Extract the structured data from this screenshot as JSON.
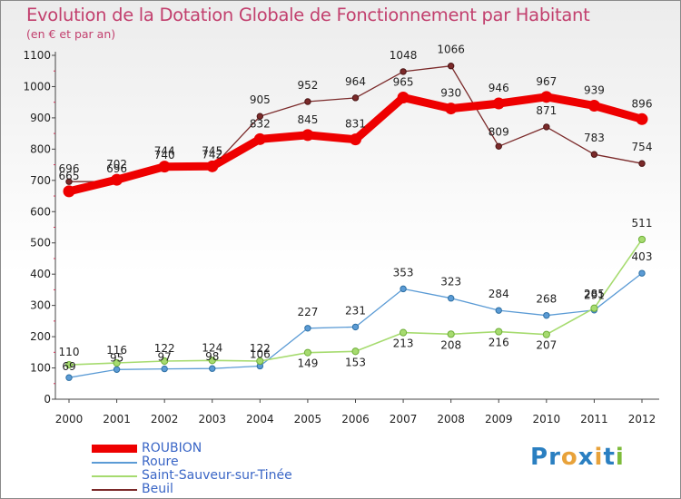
{
  "chart_data": {
    "type": "line",
    "title": "Evolution de la Dotation Globale de Fonctionnement par Habitant",
    "subtitle": "(en € et par an)",
    "x": [
      "2000",
      "2001",
      "2002",
      "2003",
      "2004",
      "2005",
      "2006",
      "2007",
      "2008",
      "2009",
      "2010",
      "2011",
      "2012"
    ],
    "ylim": [
      0,
      1100
    ],
    "yticks": [
      0,
      100,
      200,
      300,
      400,
      500,
      600,
      700,
      800,
      900,
      1000,
      1100
    ],
    "grid": false,
    "legend_position": "bottom-left",
    "series": [
      {
        "name": "ROUBION",
        "color": "#ee0000",
        "values": [
          665,
          702,
          744,
          745,
          832,
          845,
          831,
          965,
          930,
          946,
          967,
          939,
          896
        ],
        "labels": [
          "665",
          "702",
          "744",
          "745",
          "832",
          "845",
          "831",
          "965",
          "930",
          "946",
          "967",
          "939",
          "896"
        ]
      },
      {
        "name": "Roure",
        "color": "#5b9bd5",
        "values": [
          69,
          95,
          97,
          98,
          106,
          227,
          231,
          353,
          323,
          284,
          268,
          285,
          403
        ],
        "labels": [
          "69",
          "95",
          "97",
          "98",
          "106",
          "227",
          "231",
          "353",
          "323",
          "284",
          "268",
          "285",
          "403"
        ]
      },
      {
        "name": "Saint-Sauveur-sur-Tinée",
        "color": "#a6db6f",
        "values": [
          110,
          116,
          122,
          124,
          122,
          149,
          153,
          213,
          208,
          216,
          207,
          291,
          511
        ],
        "labels": [
          "110",
          "116",
          "122",
          "124",
          "122",
          "149",
          "153",
          "213",
          "208",
          "216",
          "207",
          "291",
          "511"
        ]
      },
      {
        "name": "Beuil",
        "color": "#7b2a2a",
        "values": [
          696,
          696,
          740,
          742,
          905,
          952,
          964,
          1048,
          1066,
          809,
          871,
          783,
          754
        ],
        "labels": [
          "696",
          "696",
          "740",
          "742",
          "905",
          "952",
          "964",
          "1048",
          "1066",
          "809",
          "871",
          "783",
          "754"
        ]
      }
    ]
  },
  "logo": {
    "text": "Proxiti",
    "letters": [
      "P",
      "r",
      "o",
      "x",
      "i",
      "t",
      "i"
    ],
    "colors": [
      "#2a7fc1",
      "#2a7fc1",
      "#e8a23a",
      "#2a7fc1",
      "#e8a23a",
      "#2a7fc1",
      "#7dbb3a"
    ]
  }
}
